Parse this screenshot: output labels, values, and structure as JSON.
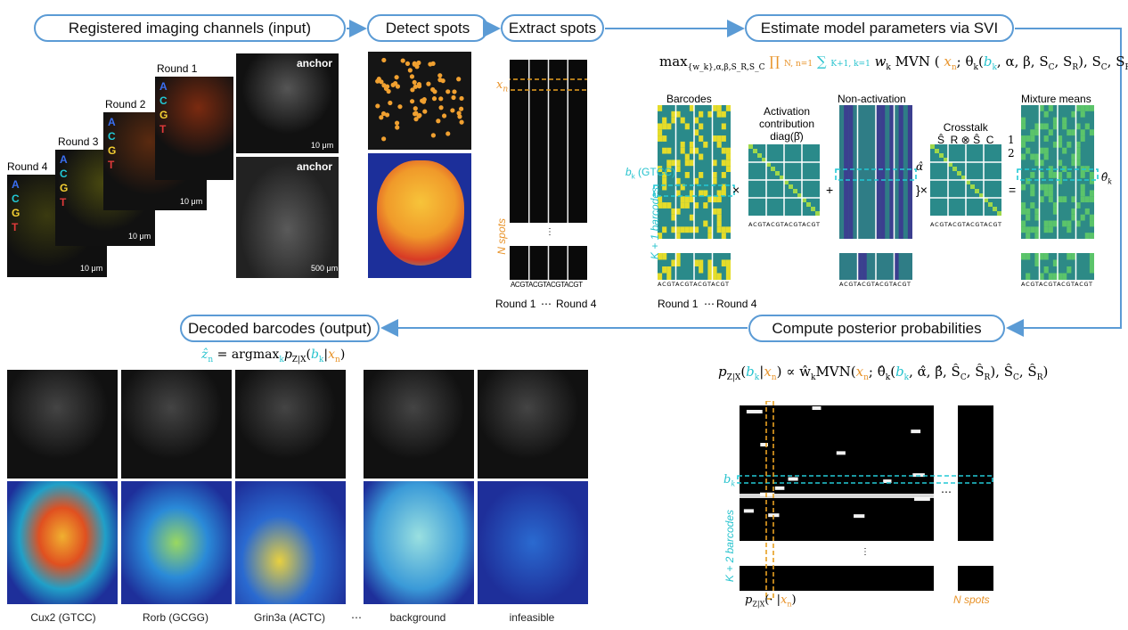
{
  "stages": {
    "input": "Registered imaging channels (input)",
    "detect": "Detect spots",
    "extract": "Extract spots",
    "estimate": "Estimate model parameters via SVI",
    "posterior": "Compute posterior probabilities",
    "output": "Decoded barcodes (output)"
  },
  "rounds": [
    "Round 1",
    "Round 2",
    "Round 3",
    "Round 4"
  ],
  "bases": [
    "A",
    "C",
    "G",
    "T"
  ],
  "base_colors": [
    "#3a6ff2",
    "#22c9d6",
    "#f5d033",
    "#e03a3a"
  ],
  "anchor_label": "anchor",
  "scale_10um": "10 μm",
  "scale_500um": "500 μm",
  "extract": {
    "xn": "x",
    "xn_sub": "n",
    "n_spots": "N spots",
    "tick_labels": "ACGTACGTACGTACGT",
    "round1": "Round 1",
    "dots": "⋯",
    "round4": "Round 4",
    "vdots": "⋮"
  },
  "svi": {
    "formula_max": "max",
    "formula_max_sub": "{w_k},α,β,S_R,S_C",
    "formula_prod": "∏",
    "formula_prod_lims": "N\nn=1",
    "formula_sum": "∑",
    "formula_sum_lims": "K+1\nk=1",
    "formula_rest1": "w",
    "formula_rest2": "MVN (",
    "formula_xn": "x",
    "formula_theta": "; θ",
    "formula_bk": "b",
    "formula_tail": ", α, β, S",
    "formula_tail2": ", S",
    "formula_tail3": "), S",
    "formula_tail4": ", S",
    "formula_close": ")",
    "barcodes_title": "Barcodes",
    "activation_title": "Activation\ncontribution\ndiag(β̂)",
    "nonact_title": "Non-activation",
    "crosstalk_title": "Crosstalk\nŜ_R ⊗ Ŝ_C",
    "means_title": "Mixture means",
    "bk_label": "b",
    "bk_code": "(GTCC)",
    "kplus1": "K + 1 barcodes",
    "times": "×",
    "plus": "+",
    "equals": "=",
    "alpha_hat": "α̂",
    "half": "1\n2",
    "theta_hat": "θ̂",
    "round1": "Round 1",
    "round4": "Round 4",
    "dots": "⋯",
    "tick_labels": "ACGTACGTACGTACGT"
  },
  "posterior": {
    "formula": "p",
    "formula_sub": "Z|X",
    "formula_bk": "b",
    "formula_xn": "x",
    "formula_rest": " ∝ ŵ",
    "formula_mvn": "MVN(",
    "formula_theta": "; θ̂",
    "formula_tail": ", α̂, β̂, Ŝ",
    "formula_tail2": ", Ŝ",
    "formula_tail3": "), Ŝ",
    "formula_tail4": ", Ŝ",
    "formula_close": ")",
    "bk_label": "b",
    "kplus2": "K + 2 barcodes",
    "n_spots": "N spots",
    "pzx_label": "p",
    "pzx_sub": "Z|X",
    "pzx_rest": "(· |",
    "pzx_xn": "x",
    "pzx_close": ")",
    "hdots": "⋯",
    "vdots": "⋮"
  },
  "output": {
    "formula_zhat": "ẑ",
    "formula_eq": " = argmax",
    "formula_k": "k",
    "formula_p": "p",
    "formula_sub": "Z|X",
    "formula_bk": "b",
    "formula_xn": "x",
    "captions": [
      "Cux2 (GTCC)",
      "Rorb (GCGG)",
      "Grin3a (ACTC)",
      "⋯",
      "background",
      "infeasible"
    ]
  }
}
